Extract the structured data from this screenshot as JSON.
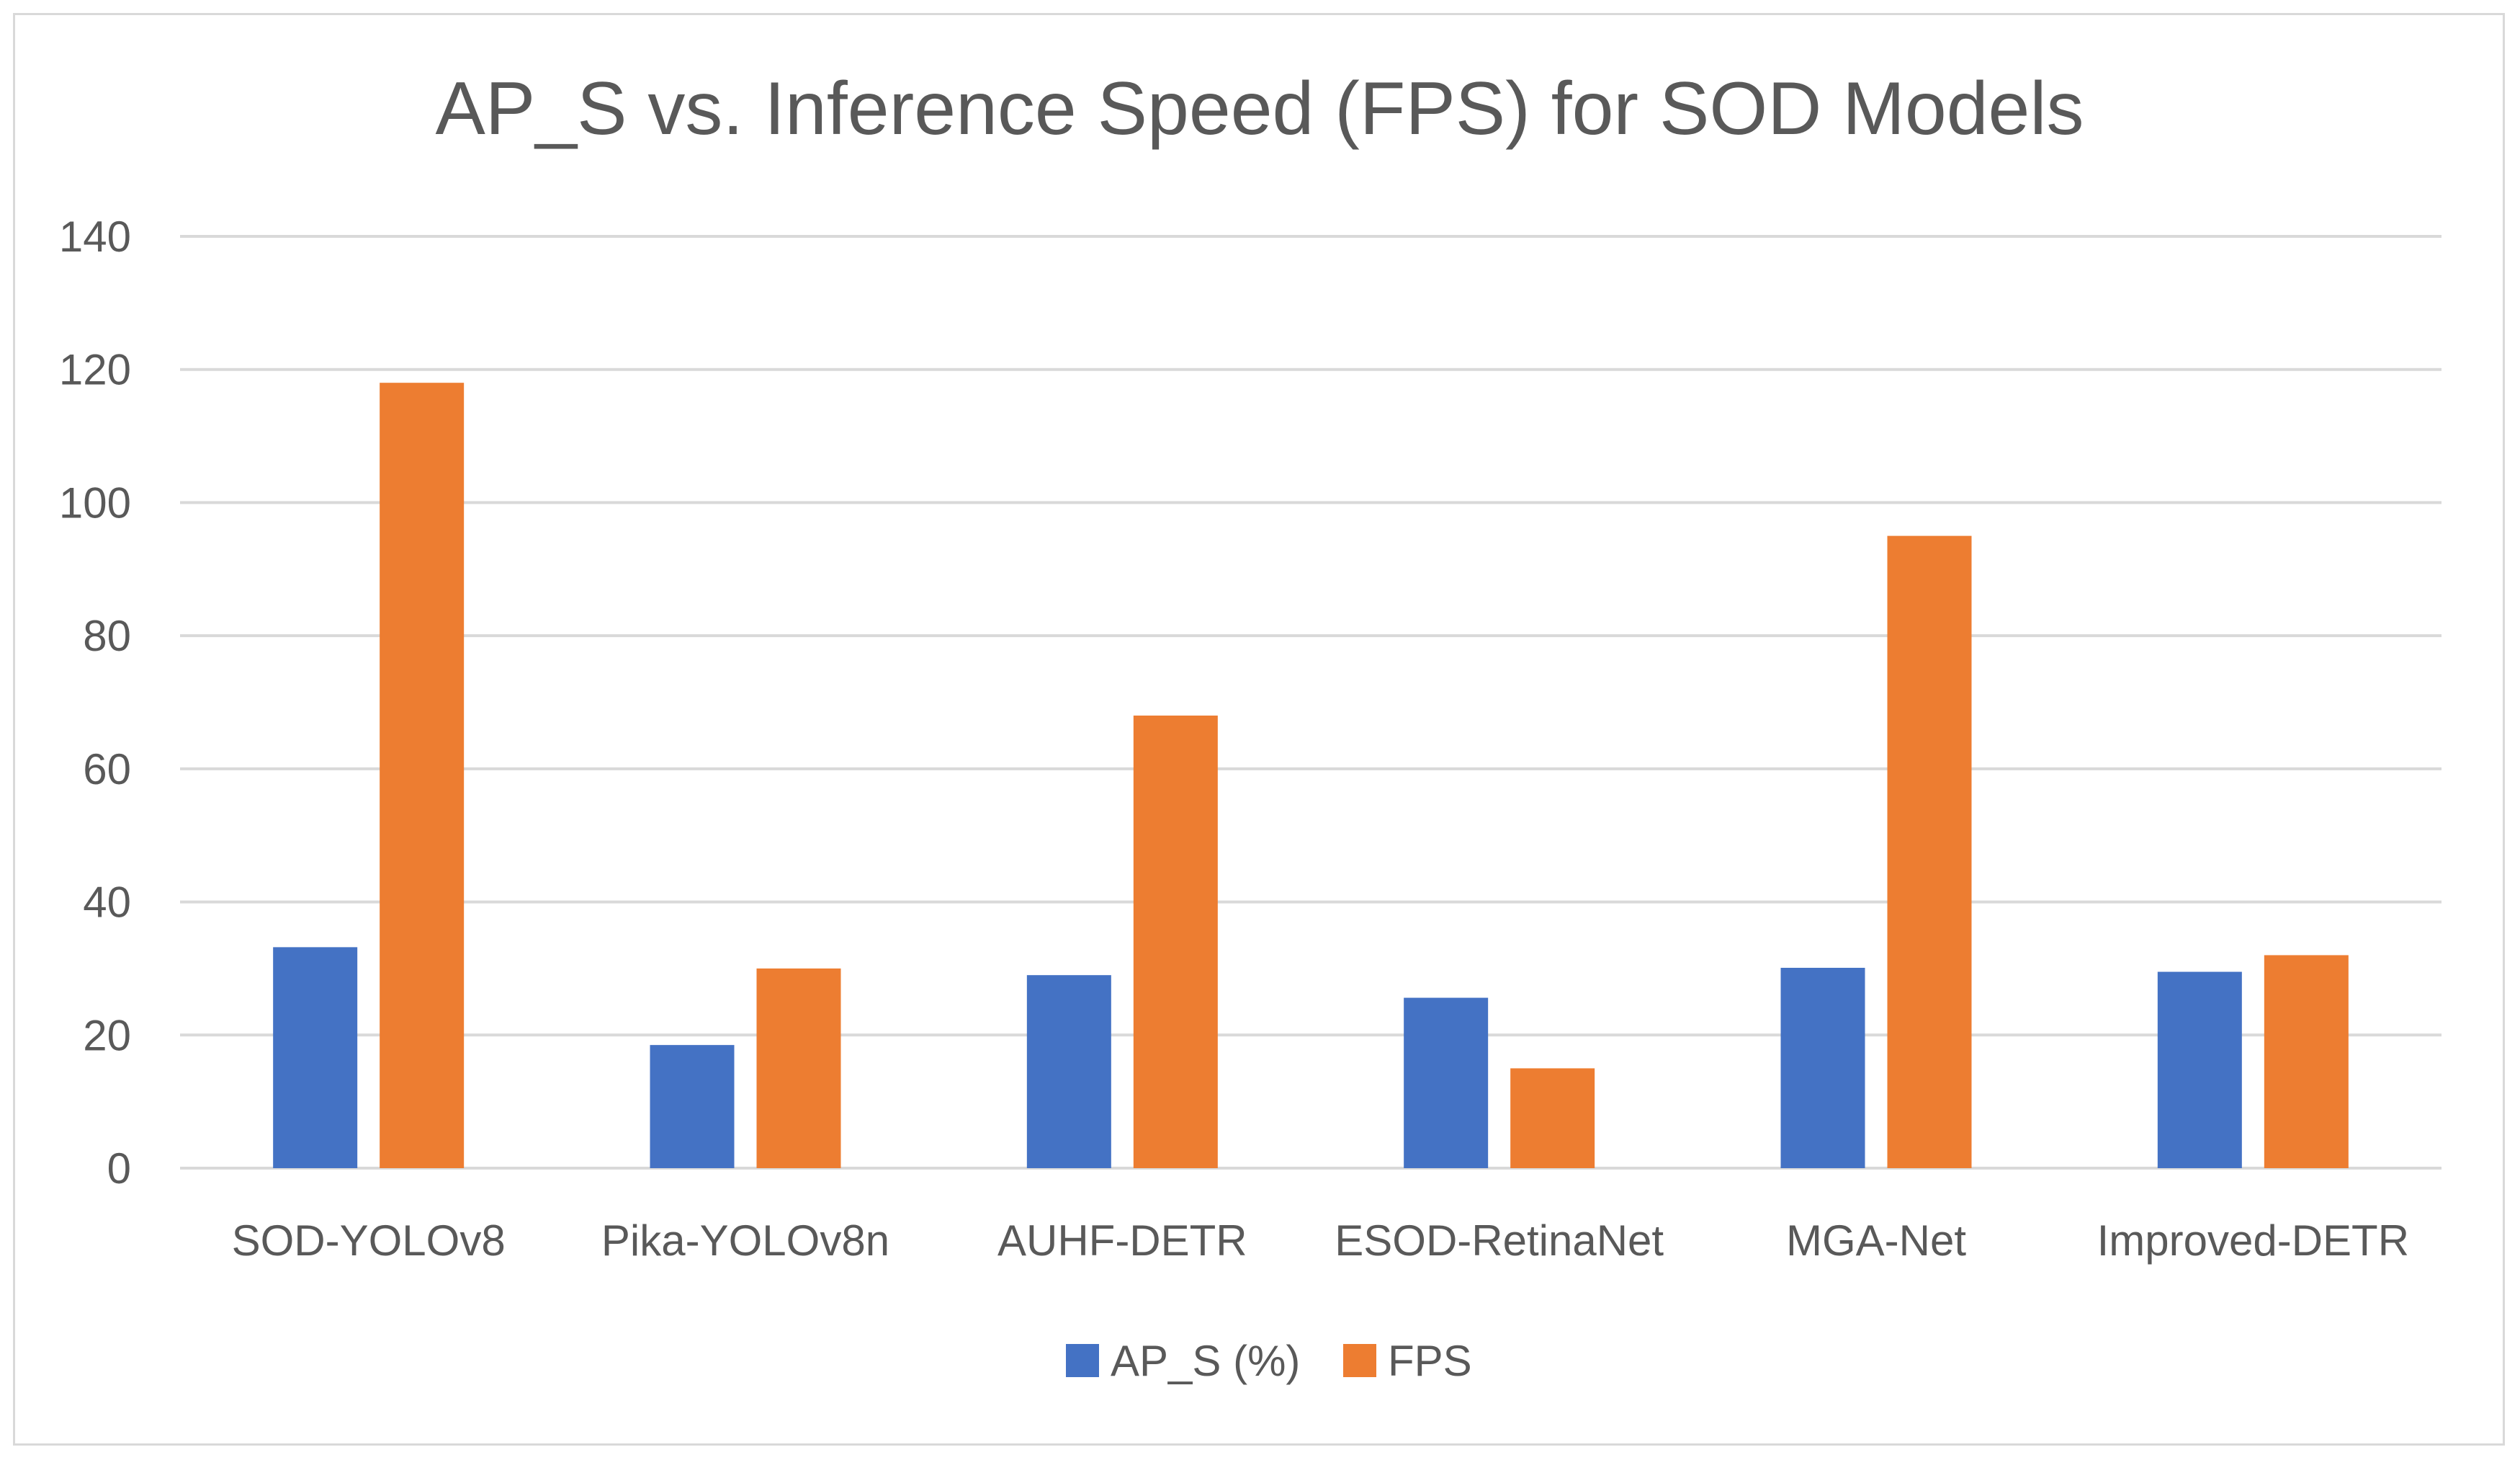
{
  "chart_data": {
    "type": "bar",
    "title": "AP_S vs. Inference Speed (FPS) for SOD Models",
    "xlabel": "",
    "ylabel": "",
    "categories": [
      "SOD-YOLOv8",
      "Pika-YOLOv8n",
      "AUHF-DETR",
      "ESOD-RetinaNet",
      "MGA-Net",
      "Improved-DETR"
    ],
    "series": [
      {
        "name": "AP_S (%)",
        "color": "#4472C4",
        "values": [
          33.2,
          18.5,
          29.0,
          25.6,
          30.1,
          29.5
        ]
      },
      {
        "name": "FPS",
        "color": "#ED7D31",
        "values": [
          118,
          30,
          68,
          15,
          95,
          32
        ]
      }
    ],
    "ylim": [
      0,
      140
    ],
    "yticks": [
      "0",
      "20",
      "40",
      "60",
      "80",
      "100",
      "120",
      "140"
    ],
    "grid": true,
    "legend_position": "bottom"
  }
}
